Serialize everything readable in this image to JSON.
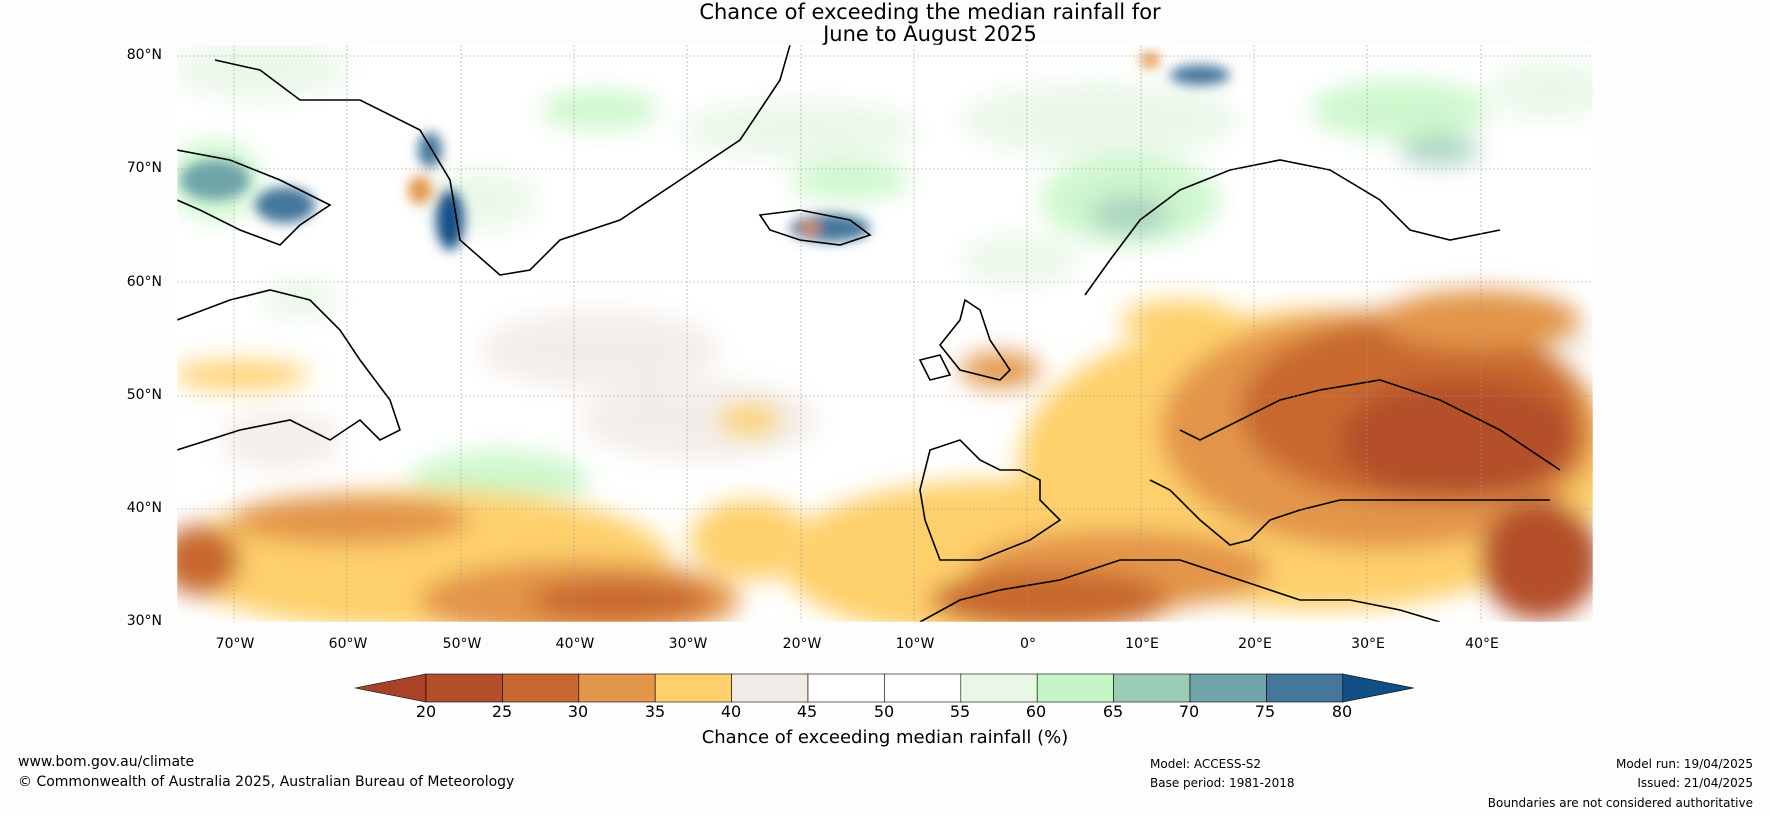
{
  "title": [
    "Chance of exceeding the median rainfall for",
    "June to August 2025"
  ],
  "map": {
    "lat_labels": [
      "80°N",
      "70°N",
      "60°N",
      "50°N",
      "40°N",
      "30°N"
    ],
    "lon_labels": [
      "70°W",
      "60°W",
      "50°W",
      "40°W",
      "30°W",
      "20°W",
      "10°W",
      "0°",
      "10°E",
      "20°E",
      "30°E",
      "40°E"
    ]
  },
  "colorbar": {
    "label": "Chance of exceeding median rainfall (%)",
    "ticks": [
      "20",
      "25",
      "30",
      "35",
      "40",
      "45",
      "50",
      "55",
      "60",
      "65",
      "70",
      "75",
      "80"
    ],
    "colors": [
      "#a8432a",
      "#b44f2c",
      "#c8682f",
      "#e3954a",
      "#fed06c",
      "#f1ebe6",
      "#ffffff",
      "#ffffff",
      "#e8f7e6",
      "#c6f6c5",
      "#9bcdb6",
      "#6fa5aa",
      "#44779b",
      "#124f87"
    ]
  },
  "footer": {
    "url": "www.bom.gov.au/climate",
    "copyright": "© Commonwealth of Australia 2025, Australian Bureau of Meteorology",
    "model": "Model: ACCESS-S2",
    "base_period": "Base period: 1981-2018",
    "model_run": "Model run: 19/04/2025",
    "issued": "Issued: 21/04/2025",
    "disclaimer": "Boundaries are not considered authoritative"
  }
}
